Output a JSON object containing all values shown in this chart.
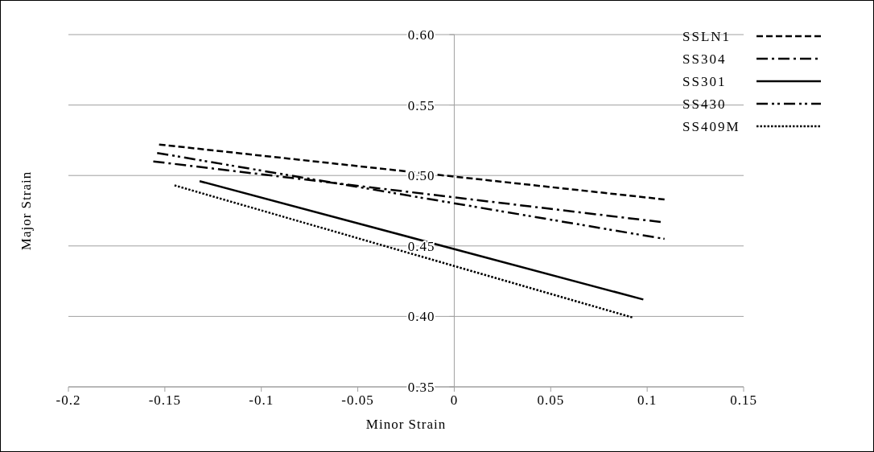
{
  "chart_data": {
    "type": "line",
    "xlabel": "Minor Strain",
    "ylabel": "Major Strain",
    "xlim": [
      -0.2,
      0.15
    ],
    "xticks": [
      -0.2,
      -0.15,
      -0.1,
      -0.05,
      0,
      0.05,
      0.1,
      0.15
    ],
    "ylim": [
      0.35,
      0.6
    ],
    "yticks": [
      {
        "value": 0.35,
        "label": "0.35"
      },
      {
        "value": 0.4,
        "label": "0.40"
      },
      {
        "value": 0.45,
        "label": "0.45"
      },
      {
        "value": 0.5,
        "label": "0.50"
      },
      {
        "value": 0.55,
        "label": "0.55"
      },
      {
        "value": 0.6,
        "label": "0.60"
      }
    ],
    "grid": "y",
    "legend": "top right",
    "marker": "none",
    "series": [
      {
        "name": "SSLN1",
        "color": "#000000",
        "line_style": "dashed",
        "x": [
          -0.153,
          0.109
        ],
        "values": [
          0.522,
          0.483
        ]
      },
      {
        "name": "SS304",
        "color": "#000000",
        "line_style": "dashdot",
        "x": [
          -0.156,
          0.107
        ],
        "values": [
          0.51,
          0.467
        ]
      },
      {
        "name": "SS301",
        "color": "#000000",
        "line_style": "solid",
        "x": [
          -0.132,
          0.098
        ],
        "values": [
          0.496,
          0.412
        ]
      },
      {
        "name": "SS430",
        "color": "#000000",
        "line_style": "dashdotdot",
        "x": [
          -0.154,
          0.109
        ],
        "values": [
          0.516,
          0.455
        ]
      },
      {
        "name": "SS409M",
        "color": "#000000",
        "line_style": "dotted",
        "x": [
          -0.145,
          0.093
        ],
        "values": [
          0.493,
          0.399
        ]
      }
    ]
  }
}
